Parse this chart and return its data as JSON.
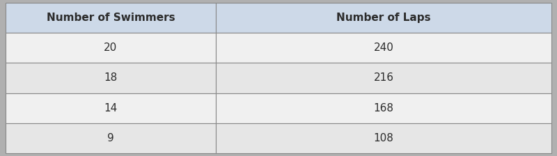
{
  "col_headers": [
    "Number of Swimmers",
    "Number of Laps"
  ],
  "rows": [
    [
      "20",
      "240"
    ],
    [
      "18",
      "216"
    ],
    [
      "14",
      "168"
    ],
    [
      "9",
      "108"
    ]
  ],
  "header_bg": "#cdd9e8",
  "row_bg_light": "#f0f0f0",
  "row_bg_dark": "#e6e6e6",
  "border_color": "#888888",
  "header_font_size": 11,
  "cell_font_size": 11,
  "text_color": "#2c2c2c",
  "fig_bg": "#b0b0b0",
  "col_split": 0.385
}
